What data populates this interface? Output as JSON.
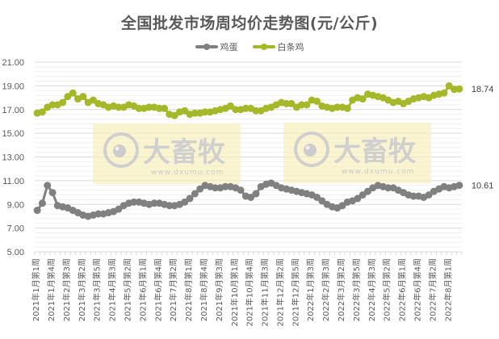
{
  "chart_data": {
    "type": "line",
    "title": "全国批发市场周均价走势图(元/公斤)",
    "xlabel": "",
    "ylabel": "",
    "ylim": [
      5,
      21
    ],
    "yticks": [
      "5.00",
      "7.00",
      "9.00",
      "11.00",
      "13.00",
      "15.00",
      "17.00",
      "19.00",
      "21.00"
    ],
    "grid": true,
    "legend_position": "top",
    "x_tick_labels": [
      "2021年1月第1周",
      "2021年1月第4周",
      "2021年2月第3周",
      "2021年3月第2周",
      "2021年3月第5周",
      "2021年4月第3周",
      "2021年5月第2周",
      "2021年6月第1周",
      "2021年6月第4周",
      "2021年7月第2周",
      "2021年8月第1周",
      "2021年8月第4周",
      "2021年9月第3周",
      "2021年10月第1周",
      "2021年10月第4周",
      "2021年11月第3周",
      "2021年12月第2周",
      "2021年12月第5周",
      "2022年1月第3周",
      "2022年2月第3周",
      "2022年3月第2周",
      "2022年3月第5周",
      "2022年4月第3周",
      "2022年5月第2周",
      "2022年6月第1周",
      "2022年6月第4周",
      "2022年7月第2周",
      "2022年8月第1周"
    ],
    "series": [
      {
        "name": "鸡蛋",
        "color": "#808080",
        "end_label": "10.61",
        "values": [
          8.5,
          9.1,
          10.6,
          10.0,
          8.9,
          8.8,
          8.7,
          8.5,
          8.3,
          8.1,
          8.0,
          8.1,
          8.2,
          8.2,
          8.3,
          8.4,
          8.6,
          8.9,
          9.1,
          9.2,
          9.2,
          9.1,
          9.0,
          9.1,
          9.1,
          9.0,
          8.9,
          8.9,
          9.0,
          9.2,
          9.5,
          9.9,
          10.3,
          10.6,
          10.5,
          10.4,
          10.4,
          10.5,
          10.5,
          10.4,
          10.2,
          9.7,
          9.6,
          9.9,
          10.5,
          10.7,
          10.8,
          10.6,
          10.4,
          10.3,
          10.2,
          10.1,
          10.0,
          9.9,
          9.8,
          9.6,
          9.3,
          9.0,
          8.8,
          8.7,
          8.9,
          9.2,
          9.3,
          9.5,
          9.8,
          10.1,
          10.4,
          10.6,
          10.5,
          10.4,
          10.4,
          10.2,
          10.0,
          9.8,
          9.7,
          9.7,
          9.6,
          9.8,
          10.1,
          10.3,
          10.5,
          10.4,
          10.5,
          10.61
        ]
      },
      {
        "name": "白条鸡",
        "color": "#A5B82A",
        "end_label": "18.74",
        "values": [
          16.7,
          16.8,
          17.2,
          17.4,
          17.4,
          17.6,
          18.1,
          18.4,
          17.9,
          18.1,
          17.6,
          17.8,
          17.5,
          17.4,
          17.2,
          17.3,
          17.2,
          17.2,
          17.4,
          17.3,
          17.1,
          17.1,
          17.2,
          17.2,
          17.1,
          17.1,
          16.6,
          16.5,
          16.8,
          16.9,
          16.6,
          16.7,
          16.7,
          16.8,
          16.8,
          16.9,
          17.0,
          17.1,
          17.3,
          17.0,
          17.0,
          17.1,
          17.1,
          16.9,
          16.9,
          17.1,
          17.2,
          17.4,
          17.6,
          17.5,
          17.5,
          17.2,
          17.4,
          17.4,
          17.8,
          17.7,
          17.3,
          17.2,
          17.1,
          17.2,
          17.2,
          17.1,
          17.8,
          18.0,
          17.9,
          18.3,
          18.2,
          18.1,
          18.0,
          17.8,
          17.6,
          17.7,
          17.5,
          17.7,
          17.9,
          18.0,
          18.1,
          18.0,
          18.2,
          18.3,
          18.4,
          19.0,
          18.7,
          18.74
        ]
      }
    ]
  },
  "watermark": {
    "brand": "大畜牧",
    "url": "www.dxumu.com"
  },
  "legend": [
    {
      "label": "鸡蛋",
      "color": "#808080"
    },
    {
      "label": "白条鸡",
      "color": "#A5B82A"
    }
  ]
}
